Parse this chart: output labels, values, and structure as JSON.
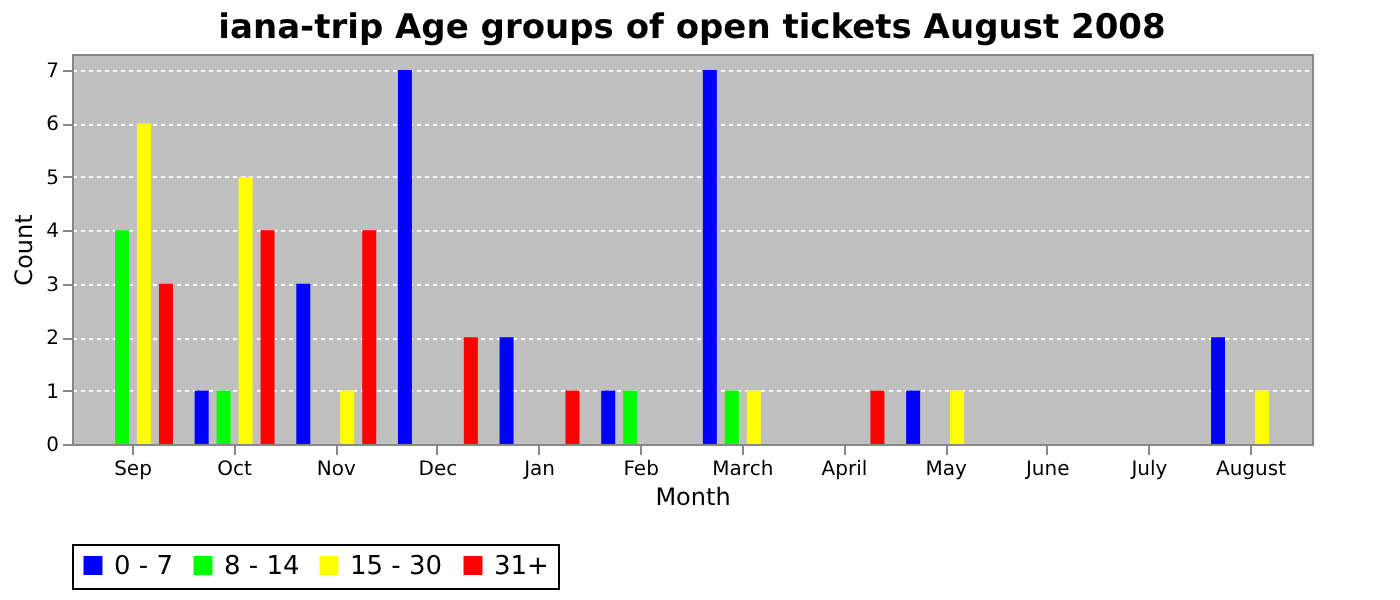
{
  "chart_data": {
    "type": "bar",
    "title": "iana-trip Age groups of open tickets August 2008",
    "xlabel": "Month",
    "ylabel": "Count",
    "categories": [
      "Sep",
      "Oct",
      "Nov",
      "Dec",
      "Jan",
      "Feb",
      "March",
      "April",
      "May",
      "June",
      "July",
      "August"
    ],
    "series": [
      {
        "name": "0 - 7",
        "color": "#0000ff",
        "values": [
          0,
          1,
          3,
          7,
          2,
          1,
          7,
          0,
          1,
          0,
          0,
          2
        ]
      },
      {
        "name": "8 - 14",
        "color": "#00ff00",
        "values": [
          4,
          1,
          0,
          0,
          0,
          1,
          1,
          0,
          0,
          0,
          0,
          0
        ]
      },
      {
        "name": "15 - 30",
        "color": "#ffff00",
        "values": [
          6,
          5,
          1,
          0,
          0,
          0,
          1,
          0,
          1,
          0,
          0,
          1
        ]
      },
      {
        "name": "31+",
        "color": "#ff0000",
        "values": [
          3,
          4,
          4,
          2,
          1,
          0,
          0,
          1,
          0,
          0,
          0,
          0
        ]
      }
    ],
    "ylim": [
      0,
      7.3
    ],
    "yticks": [
      0,
      1,
      2,
      3,
      4,
      5,
      6,
      7
    ],
    "grid": "y",
    "legend": "bottom"
  }
}
